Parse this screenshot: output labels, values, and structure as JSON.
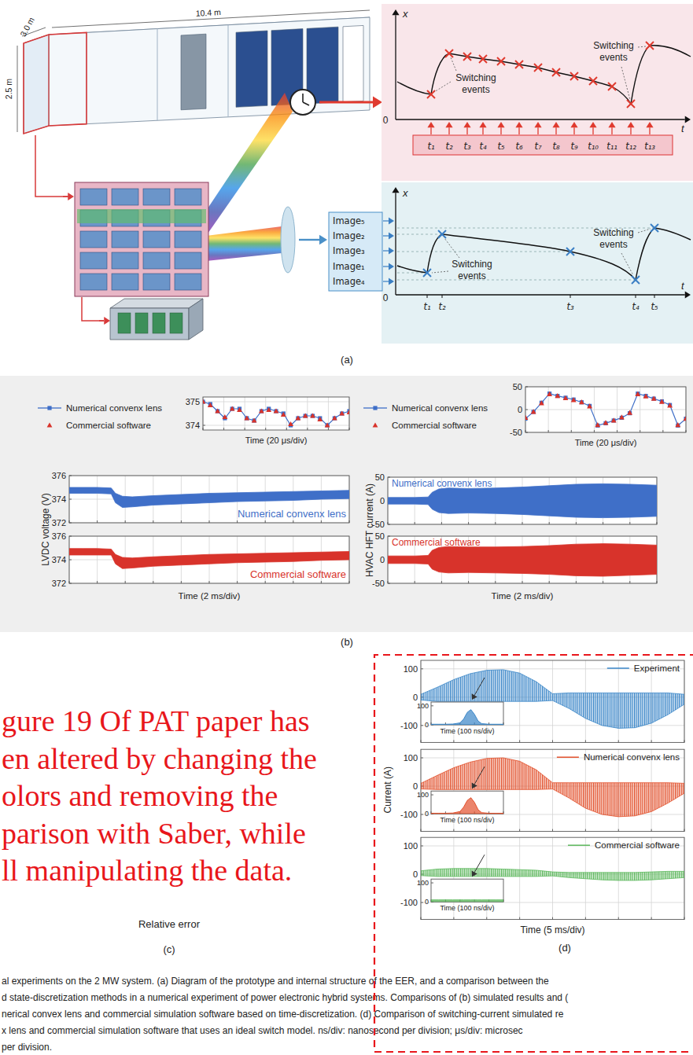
{
  "diagram": {
    "container_dims": [
      "3.0 m",
      "10.4 m",
      "2.5 m"
    ],
    "time_plot": {
      "axis_y": "x",
      "axis_x": "t",
      "origin": "0",
      "annotations": [
        "Switching events",
        "Switching events"
      ],
      "t_labels": [
        "t₁",
        "t₂",
        "t₃",
        "t₄",
        "t₅",
        "t₆",
        "t₇",
        "t₈",
        "t₉",
        "t₁₀",
        "t₁₁",
        "t₁₂",
        "t₁₃"
      ]
    },
    "state_plot": {
      "axis_y": "x",
      "axis_x": "t",
      "origin": "0",
      "annotations": [
        "Switching events",
        "Switching events"
      ],
      "t_labels": [
        "t₁",
        "t₂",
        "t₃",
        "t₄",
        "t₅"
      ],
      "images": [
        "Image₅",
        "Image₂",
        "Image₃",
        "Image₁",
        "Image₄"
      ]
    }
  },
  "panel_labels": [
    "(a)",
    "(b)",
    "(c)",
    "(d)"
  ],
  "panel_c": {
    "overlay": [
      "gure 19 Of PAT paper has",
      "en altered by changing the",
      "olors and removing the",
      "parison with Saber, while",
      "ll manipulating the data."
    ],
    "xlabel": "Relative error"
  },
  "caption": [
    "al experiments on the 2 MW system. (a) Diagram of the prototype and internal structure of the EER, and a comparison between the",
    "d state-discretization methods in a numerical experiment of power electronic hybrid systems. Comparisons of (b) simulated results and (",
    "nerical convex lens and commercial simulation software based on time-discretization. (d) Comparison of switching-current simulated re",
    "x lens and commercial simulation software that uses an ideal switch model. ns/div: nanosecond per division; μs/div: microsec",
    "per division."
  ],
  "chart_data": [
    {
      "type": "line",
      "xlabel": "Time (20 μs/div)",
      "x": [
        0,
        7,
        14,
        21,
        28,
        35,
        42,
        49,
        56,
        63,
        70,
        77,
        84,
        91,
        98,
        105,
        112,
        119,
        126,
        133,
        140
      ],
      "xlim": [
        0,
        140
      ],
      "xticks": [
        0,
        20,
        40,
        60,
        80,
        100,
        120,
        140
      ],
      "ylim": [
        373.8,
        375.2
      ],
      "yticks": [
        374,
        375
      ],
      "grid": true,
      "tick_labels": "y",
      "legend": "left",
      "series": [
        {
          "name": "Numerical convenx lens",
          "color": "#3f6fc8",
          "marker": "square",
          "line_style": "solid",
          "values": [
            375.0,
            374.9,
            374.6,
            374.3,
            374.7,
            374.7,
            374.3,
            374.2,
            374.6,
            374.7,
            374.6,
            374.5,
            374.0,
            374.3,
            374.4,
            374.4,
            374.3,
            374.0,
            374.3,
            374.5,
            374.6
          ]
        },
        {
          "name": "Commercial software",
          "color": "#d8332b",
          "marker": "triangle",
          "line_style": "none",
          "values": [
            375.0,
            374.85,
            374.6,
            374.35,
            374.7,
            374.65,
            374.3,
            374.2,
            374.6,
            374.65,
            374.6,
            374.45,
            374.05,
            374.3,
            374.4,
            374.4,
            374.25,
            374.0,
            374.3,
            374.5,
            374.55
          ]
        }
      ]
    },
    {
      "type": "line",
      "xlabel": "Time (20 μs/div)",
      "x": [
        0,
        7,
        14,
        21,
        28,
        35,
        42,
        49,
        56,
        63,
        70,
        77,
        84,
        91,
        98,
        105,
        112,
        119,
        126,
        133,
        140
      ],
      "xlim": [
        0,
        140
      ],
      "xticks": [
        0,
        20,
        40,
        60,
        80,
        100,
        120,
        140
      ],
      "ylim": [
        -50,
        50
      ],
      "yticks": [
        -50,
        0,
        50
      ],
      "grid": true,
      "tick_labels": "y",
      "legend": "left",
      "series": [
        {
          "name": "Numerical convenx lens",
          "color": "#3f6fc8",
          "marker": "square",
          "line_style": "solid",
          "values": [
            -20,
            -5,
            15,
            35,
            30,
            26,
            22,
            16,
            8,
            -35,
            -30,
            -24,
            -18,
            -8,
            35,
            30,
            24,
            18,
            10,
            -35,
            -20
          ]
        },
        {
          "name": "Commercial software",
          "color": "#d8332b",
          "marker": "triangle",
          "line_style": "none",
          "values": [
            -18,
            -5,
            14,
            34,
            30,
            25,
            21,
            16,
            7,
            -34,
            -29,
            -24,
            -17,
            -7,
            34,
            29,
            24,
            17,
            9,
            -34,
            -20
          ]
        }
      ]
    },
    {
      "type": "band",
      "xlabel": "Time (2 ms/div)",
      "ylabel": "LVDC voltage (V)",
      "x": [
        0,
        1,
        2,
        3,
        3.3,
        3.8,
        4.5,
        6,
        8,
        10,
        12,
        14,
        16,
        18,
        20
      ],
      "xlim": [
        0,
        20
      ],
      "xticks": [
        0,
        2,
        4,
        6,
        8,
        10,
        12,
        14,
        16,
        18,
        20
      ],
      "ylim": [
        372,
        376
      ],
      "yticks": [
        372,
        374,
        376
      ],
      "grid": true,
      "tick_labels": "y",
      "series": [
        {
          "name": "Numerical convenx lens",
          "color": "#3f6fc8",
          "values": [
            375.0,
            375.0,
            375.0,
            374.95,
            374.5,
            374.25,
            374.2,
            374.3,
            374.4,
            374.5,
            374.55,
            374.6,
            374.65,
            374.7,
            374.75
          ],
          "lower": [
            374.5,
            374.5,
            374.5,
            374.45,
            373.7,
            373.3,
            373.35,
            373.5,
            373.6,
            373.7,
            373.8,
            373.85,
            373.9,
            374.0,
            374.05
          ]
        },
        {
          "name": "Commercial software",
          "color": "#d8332b",
          "values": [
            374.95,
            374.95,
            374.95,
            374.9,
            374.45,
            374.2,
            374.15,
            374.25,
            374.35,
            374.45,
            374.5,
            374.55,
            374.6,
            374.65,
            374.7
          ],
          "lower": [
            374.4,
            374.4,
            374.4,
            374.4,
            373.65,
            373.25,
            373.3,
            373.45,
            373.55,
            373.65,
            373.75,
            373.8,
            373.85,
            373.95,
            374.0
          ]
        }
      ]
    },
    {
      "type": "band",
      "xlabel": "Time (2 ms/div)",
      "ylabel": "HVAC HFT current (A)",
      "x": [
        0,
        1,
        2,
        3,
        3.3,
        3.8,
        4.5,
        6,
        8,
        10,
        12,
        14,
        16,
        18,
        20
      ],
      "xlim": [
        0,
        20
      ],
      "xticks": [
        0,
        2,
        4,
        6,
        8,
        10,
        12,
        14,
        16,
        18,
        20
      ],
      "ylim": [
        -50,
        50
      ],
      "yticks": [
        -50,
        0,
        50
      ],
      "grid": true,
      "tick_labels": "y",
      "series": [
        {
          "name": "Numerical convenx lens",
          "color": "#3f6fc8",
          "values": [
            7,
            7,
            7,
            8,
            18,
            25,
            27,
            26,
            27,
            29,
            32,
            35,
            36,
            35,
            33
          ],
          "lower": [
            -7,
            -7,
            -7,
            -8,
            -18,
            -25,
            -27,
            -26,
            -27,
            -29,
            -32,
            -35,
            -36,
            -35,
            -33
          ]
        },
        {
          "name": "Commercial software",
          "color": "#d8332b",
          "values": [
            8,
            8,
            8,
            9,
            20,
            26,
            28,
            27,
            27,
            28,
            30,
            33,
            34,
            33,
            31
          ],
          "lower": [
            -8,
            -8,
            -8,
            -9,
            -20,
            -26,
            -28,
            -27,
            -28,
            -29,
            -31,
            -34,
            -35,
            -33,
            -31
          ]
        }
      ]
    },
    {
      "type": "band",
      "xlabel": "Time (5 ms/div)",
      "ylabel": "Current (A)",
      "x": [
        0,
        2.5,
        5,
        7.5,
        10,
        12.5,
        15,
        17.5,
        20,
        22.5,
        25,
        27.5,
        30,
        32.5,
        35,
        37.5,
        40
      ],
      "xlim": [
        0,
        40
      ],
      "xticks": [
        0,
        5,
        10,
        15,
        20,
        25,
        30,
        35,
        40
      ],
      "ylim": [
        -160,
        130
      ],
      "yticks": [
        -100,
        0,
        100
      ],
      "grid": true,
      "tick_labels": "y",
      "legend": "upper right",
      "series": [
        {
          "name": "Experiment",
          "color": "#3a86c8",
          "values": [
            10,
            35,
            62,
            83,
            95,
            97,
            85,
            55,
            12,
            15,
            15,
            15,
            15,
            15,
            15,
            15,
            10
          ],
          "lower": [
            -10,
            -15,
            -15,
            -15,
            -15,
            -15,
            -15,
            -15,
            -12,
            -40,
            -75,
            -100,
            -110,
            -108,
            -92,
            -62,
            -25
          ]
        },
        {
          "name": "Numerical convenx lens",
          "color": "#e2502c",
          "values": [
            10,
            38,
            65,
            85,
            98,
            100,
            88,
            58,
            12,
            12,
            12,
            12,
            12,
            12,
            12,
            12,
            10
          ],
          "lower": [
            -10,
            -12,
            -12,
            -12,
            -12,
            -12,
            -12,
            -12,
            -10,
            -42,
            -78,
            -100,
            -108,
            -105,
            -90,
            -60,
            -25
          ]
        },
        {
          "name": "Commercial software",
          "color": "#5cb85c",
          "values": [
            12,
            18,
            20,
            20,
            20,
            18,
            16,
            14,
            8,
            6,
            6,
            6,
            6,
            6,
            8,
            10,
            10
          ],
          "lower": [
            -5,
            -8,
            -8,
            -8,
            -8,
            -8,
            -8,
            -8,
            -6,
            -12,
            -16,
            -20,
            -22,
            -22,
            -20,
            -16,
            -12
          ]
        }
      ]
    },
    {
      "type": "area",
      "xlabel": "Time (100 ns/div)",
      "x": [
        0,
        50,
        100,
        150,
        200,
        225,
        250,
        275,
        300,
        325,
        350,
        400,
        450,
        500
      ],
      "xlim": [
        0,
        500
      ],
      "xticks": [
        0,
        100,
        200,
        300,
        400,
        500
      ],
      "ylim": [
        0,
        120
      ],
      "yticks": [
        0,
        100
      ],
      "tick_labels": "y",
      "color": "#3a86c8",
      "values": [
        3,
        3,
        3,
        4,
        10,
        30,
        65,
        80,
        55,
        20,
        6,
        3,
        3,
        3
      ]
    },
    {
      "type": "area",
      "xlabel": "Time (100 ns/div)",
      "x": [
        0,
        50,
        100,
        150,
        200,
        225,
        250,
        275,
        300,
        325,
        350,
        400,
        450,
        500
      ],
      "xlim": [
        0,
        500
      ],
      "xticks": [
        0,
        100,
        200,
        300,
        400,
        500
      ],
      "ylim": [
        0,
        120
      ],
      "yticks": [
        0,
        100
      ],
      "tick_labels": "y",
      "color": "#e2502c",
      "values": [
        3,
        3,
        3,
        4,
        12,
        35,
        70,
        85,
        60,
        22,
        6,
        3,
        3,
        3
      ]
    },
    {
      "type": "area",
      "xlabel": "Time (100 ns/div)",
      "x": [
        0,
        50,
        100,
        150,
        200,
        225,
        250,
        275,
        300,
        325,
        350,
        400,
        450,
        500
      ],
      "xlim": [
        0,
        500
      ],
      "xticks": [
        0,
        100,
        200,
        300,
        400,
        500
      ],
      "ylim": [
        0,
        120
      ],
      "yticks": [
        0,
        100
      ],
      "tick_labels": "y",
      "color": "#5cb85c",
      "values": [
        10,
        10,
        10,
        10,
        10,
        10,
        10,
        10,
        10,
        10,
        10,
        10,
        10,
        10
      ]
    }
  ]
}
